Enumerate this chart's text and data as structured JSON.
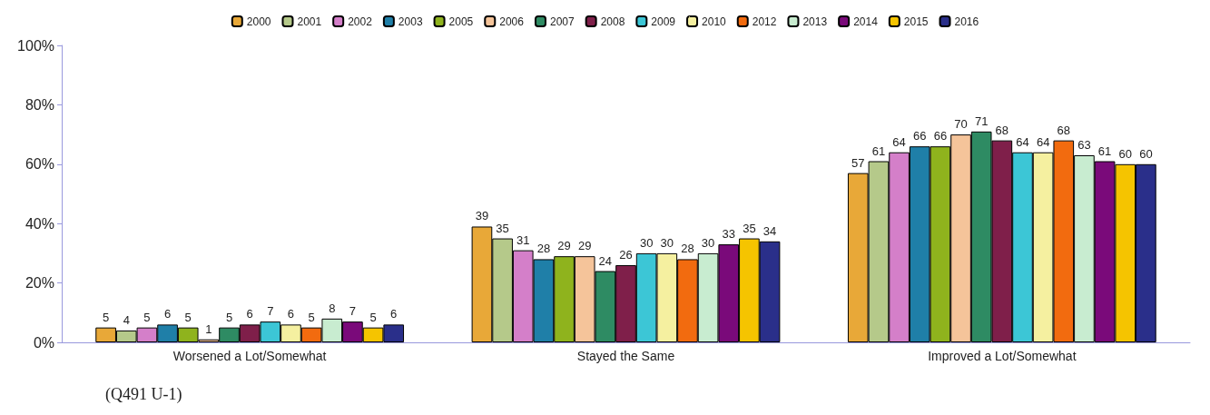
{
  "chart_data": {
    "type": "bar",
    "categories": [
      "Worsened a Lot/Somewhat",
      "Stayed the Same",
      "Improved a Lot/Somewhat"
    ],
    "series": [
      {
        "name": "2000",
        "color": "#e8a838",
        "values": [
          5,
          39,
          57
        ]
      },
      {
        "name": "2001",
        "color": "#b5c98a",
        "values": [
          4,
          35,
          61
        ]
      },
      {
        "name": "2002",
        "color": "#d47fc9",
        "values": [
          5,
          31,
          64
        ]
      },
      {
        "name": "2003",
        "color": "#1f7fa8",
        "values": [
          6,
          28,
          66
        ]
      },
      {
        "name": "2005",
        "color": "#8fb31d",
        "values": [
          5,
          29,
          66
        ]
      },
      {
        "name": "2006",
        "color": "#f5c49a",
        "values": [
          1,
          29,
          70
        ]
      },
      {
        "name": "2007",
        "color": "#2e8b63",
        "values": [
          5,
          24,
          71
        ]
      },
      {
        "name": "2008",
        "color": "#7f1f4a",
        "values": [
          6,
          26,
          68
        ]
      },
      {
        "name": "2009",
        "color": "#3cc6d6",
        "values": [
          7,
          30,
          64
        ]
      },
      {
        "name": "2010",
        "color": "#f5f0a0",
        "values": [
          6,
          30,
          64
        ]
      },
      {
        "name": "2012",
        "color": "#f26b0f",
        "values": [
          5,
          28,
          68
        ]
      },
      {
        "name": "2013",
        "color": "#c8ecd0",
        "values": [
          8,
          30,
          63
        ]
      },
      {
        "name": "2014",
        "color": "#7a0a7a",
        "values": [
          7,
          33,
          61
        ]
      },
      {
        "name": "2015",
        "color": "#f5c400",
        "values": [
          5,
          35,
          60
        ]
      },
      {
        "name": "2016",
        "color": "#2a2f8a",
        "values": [
          6,
          34,
          60
        ]
      }
    ],
    "ylim": [
      0,
      100
    ],
    "yticks": [
      {
        "value": 0,
        "label": "0%"
      },
      {
        "value": 20,
        "label": "20%"
      },
      {
        "value": 40,
        "label": "40%"
      },
      {
        "value": 60,
        "label": "60%"
      },
      {
        "value": 80,
        "label": "80%"
      },
      {
        "value": 100,
        "label": "100%"
      }
    ],
    "data_labels": true,
    "grid": false,
    "legend": "top",
    "annotations": [
      "(Q491 U-1)"
    ]
  }
}
